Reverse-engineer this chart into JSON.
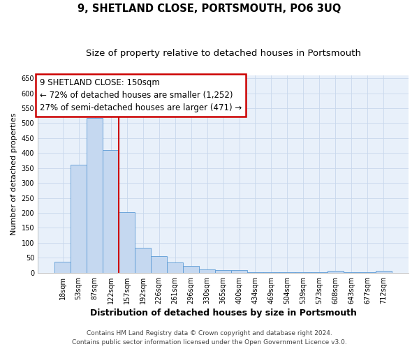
{
  "title": "9, SHETLAND CLOSE, PORTSMOUTH, PO6 3UQ",
  "subtitle": "Size of property relative to detached houses in Portsmouth",
  "xlabel": "Distribution of detached houses by size in Portsmouth",
  "ylabel": "Number of detached properties",
  "bar_labels": [
    "18sqm",
    "53sqm",
    "87sqm",
    "122sqm",
    "157sqm",
    "192sqm",
    "226sqm",
    "261sqm",
    "296sqm",
    "330sqm",
    "365sqm",
    "400sqm",
    "434sqm",
    "469sqm",
    "504sqm",
    "539sqm",
    "573sqm",
    "608sqm",
    "643sqm",
    "677sqm",
    "712sqm"
  ],
  "bar_values": [
    38,
    362,
    517,
    410,
    202,
    83,
    55,
    35,
    23,
    11,
    9,
    9,
    2,
    2,
    2,
    2,
    2,
    6,
    2,
    2,
    6
  ],
  "bar_color": "#c5d8f0",
  "bar_edge_color": "#5b9bd5",
  "red_line_x": 3.5,
  "annotation_line1": "9 SHETLAND CLOSE: 150sqm",
  "annotation_line2": "← 72% of detached houses are smaller (1,252)",
  "annotation_line3": "27% of semi-detached houses are larger (471) →",
  "annotation_box_color": "#ffffff",
  "annotation_box_edge": "#cc0000",
  "vline_color": "#cc0000",
  "ylim": [
    0,
    660
  ],
  "yticks": [
    0,
    50,
    100,
    150,
    200,
    250,
    300,
    350,
    400,
    450,
    500,
    550,
    600,
    650
  ],
  "footer_line1": "Contains HM Land Registry data © Crown copyright and database right 2024.",
  "footer_line2": "Contains public sector information licensed under the Open Government Licence v3.0.",
  "title_fontsize": 10.5,
  "subtitle_fontsize": 9.5,
  "xlabel_fontsize": 9,
  "ylabel_fontsize": 8,
  "tick_fontsize": 7,
  "annotation_fontsize": 8.5,
  "footer_fontsize": 6.5,
  "grid_color": "#c8d8ec",
  "bg_color": "#e8f0fa"
}
